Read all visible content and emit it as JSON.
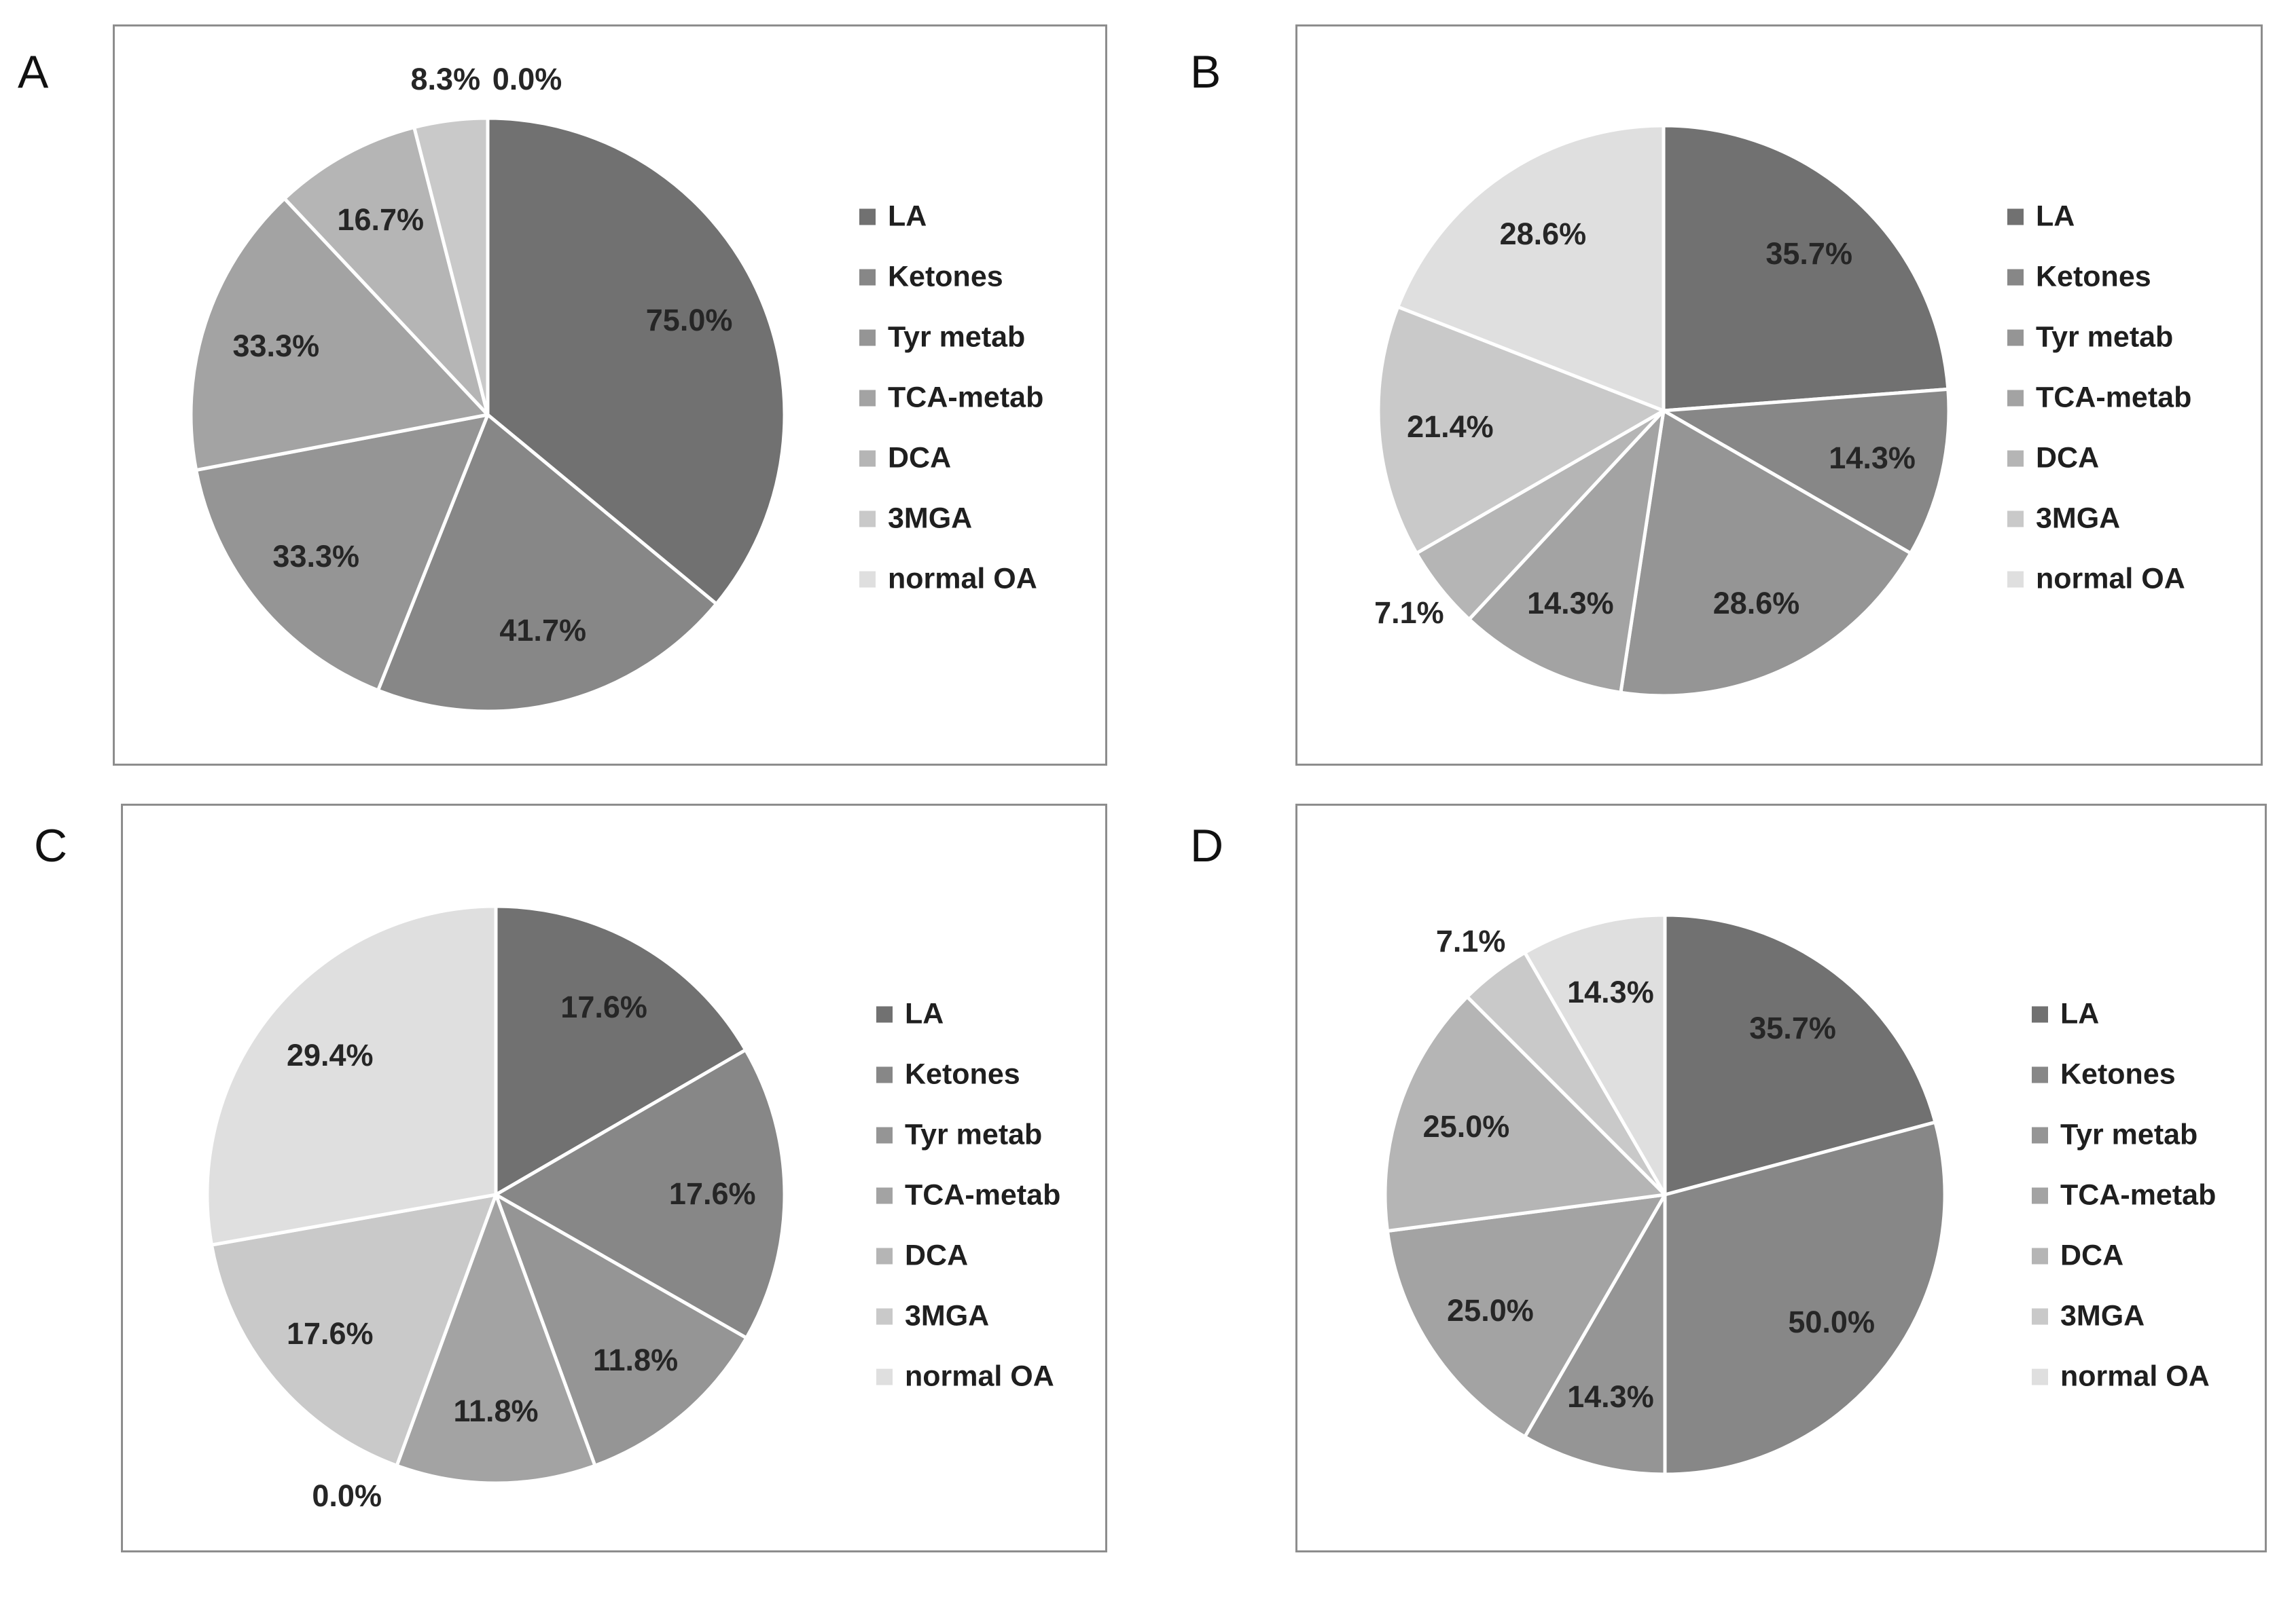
{
  "figure": {
    "description": "Four-panel grayscale pie chart figure",
    "panel_letters": [
      "A",
      "B",
      "C",
      "D"
    ]
  },
  "legend_items": [
    "LA",
    "Ketones",
    "Tyr metab",
    "TCA-metab",
    "DCA",
    "3MGA",
    "normal OA"
  ],
  "palette": {
    "slice_colors": [
      "#717171",
      "#878787",
      "#959595",
      "#a3a3a3",
      "#b5b5b5",
      "#c9c9c9",
      "#dfdfdf"
    ],
    "panel_border": "#8d8d8d",
    "label_text": "#262626",
    "legend_text": "#1f1f1f",
    "slice_divider": "#ffffff"
  },
  "chart_data": [
    {
      "type": "pie",
      "panel_label": "A",
      "categories": [
        "LA",
        "Ketones",
        "Tyr metab",
        "TCA-metab",
        "DCA",
        "3MGA",
        "normal OA"
      ],
      "values": [
        75.0,
        41.7,
        33.3,
        33.3,
        16.7,
        8.3,
        0.0
      ],
      "slice_labels": [
        "75.0%",
        "41.7%",
        "33.3%",
        "33.3%",
        "16.7%",
        "8.3%",
        "0.0%"
      ],
      "legend_position": "right",
      "start_angle_deg": 0,
      "direction": "clockwise"
    },
    {
      "type": "pie",
      "panel_label": "B",
      "categories": [
        "LA",
        "Ketones",
        "Tyr metab",
        "TCA-metab",
        "DCA",
        "3MGA",
        "normal OA"
      ],
      "values": [
        35.7,
        14.3,
        28.6,
        14.3,
        7.1,
        21.4,
        28.6
      ],
      "slice_labels": [
        "35.7%",
        "14.3%",
        "28.6%",
        "14.3%",
        "7.1%",
        "21.4%",
        "28.6%"
      ],
      "legend_position": "right",
      "start_angle_deg": 0,
      "direction": "clockwise"
    },
    {
      "type": "pie",
      "panel_label": "C",
      "categories": [
        "LA",
        "Ketones",
        "Tyr metab",
        "TCA-metab",
        "DCA",
        "3MGA",
        "normal OA"
      ],
      "values": [
        17.6,
        17.6,
        11.8,
        11.8,
        0.0,
        17.6,
        29.4
      ],
      "slice_labels": [
        "17.6%",
        "17.6%",
        "11.8%",
        "11.8%",
        "0.0%",
        "17.6%",
        "29.4%"
      ],
      "legend_position": "right",
      "start_angle_deg": 0,
      "direction": "clockwise"
    },
    {
      "type": "pie",
      "panel_label": "D",
      "categories": [
        "LA",
        "Ketones",
        "Tyr metab",
        "TCA-metab",
        "DCA",
        "3MGA",
        "normal OA"
      ],
      "values": [
        35.7,
        50.0,
        14.3,
        25.0,
        25.0,
        7.1,
        14.3
      ],
      "slice_labels": [
        "35.7%",
        "50.0%",
        "14.3%",
        "25.0%",
        "25.0%",
        "7.1%",
        "14.3%"
      ],
      "legend_position": "right",
      "start_angle_deg": 0,
      "direction": "clockwise"
    }
  ]
}
